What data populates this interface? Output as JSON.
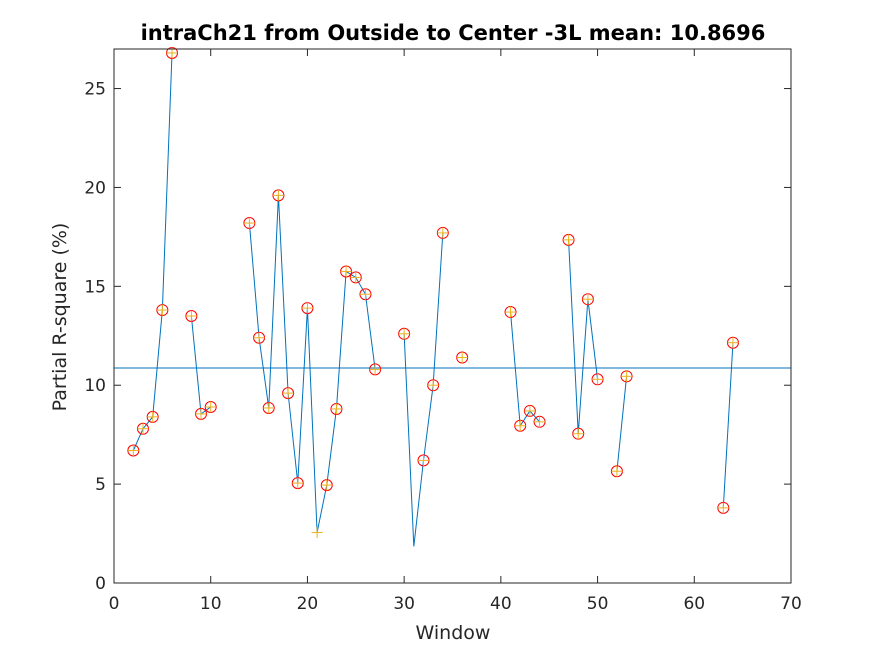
{
  "chart_data": {
    "type": "line",
    "title": "intraCh21 from Outside to Center -3L mean: 10.8696",
    "xlabel": "Window",
    "ylabel": "Partial R-square (%)",
    "xlim": [
      0,
      70
    ],
    "ylim": [
      0,
      27
    ],
    "xticks": [
      0,
      10,
      20,
      30,
      40,
      50,
      60,
      70
    ],
    "yticks": [
      0,
      5,
      10,
      15,
      20,
      25
    ],
    "xtick_labels": [
      "0",
      "10",
      "20",
      "30",
      "40",
      "50",
      "60",
      "70"
    ],
    "ytick_labels": [
      "0",
      "5",
      "10",
      "15",
      "20",
      "25"
    ],
    "grid": false,
    "mean": 10.8696,
    "line_color": "#0072BD",
    "circle_color": "#FF0000",
    "plus_color": "#EDB120",
    "series": [
      {
        "values": [
          [
            2,
            6.7
          ],
          [
            3,
            7.8
          ],
          [
            4,
            8.4
          ],
          [
            5,
            13.8
          ],
          [
            6,
            26.8
          ],
          null,
          [
            8,
            13.5
          ],
          [
            9,
            8.55
          ],
          [
            10,
            8.9
          ],
          null,
          [
            14,
            18.2
          ],
          [
            15,
            12.4
          ],
          [
            16,
            8.85
          ],
          [
            17,
            19.6
          ],
          [
            18,
            9.6
          ],
          [
            19,
            5.05
          ],
          [
            20,
            13.9
          ],
          [
            21,
            2.55
          ],
          [
            22,
            4.95
          ],
          [
            23,
            8.8
          ],
          [
            24,
            15.75
          ],
          [
            25,
            15.45
          ],
          [
            26,
            14.6
          ],
          [
            27,
            10.8
          ],
          null,
          [
            30,
            12.6
          ],
          [
            31,
            1.85
          ],
          [
            32,
            6.2
          ],
          [
            33,
            10.0
          ],
          [
            34,
            17.7
          ],
          null,
          [
            36,
            11.4
          ],
          null,
          [
            41,
            13.7
          ],
          [
            42,
            7.95
          ],
          [
            43,
            8.7
          ],
          [
            44,
            8.15
          ],
          null,
          [
            47,
            17.35
          ],
          [
            48,
            7.55
          ],
          [
            49,
            14.35
          ],
          [
            50,
            10.3
          ],
          null,
          [
            52,
            5.65
          ],
          [
            53,
            10.45
          ],
          null,
          [
            63,
            3.8
          ],
          [
            64,
            12.15
          ]
        ],
        "circle_points": [
          [
            2,
            6.7
          ],
          [
            3,
            7.8
          ],
          [
            4,
            8.4
          ],
          [
            5,
            13.8
          ],
          [
            6,
            26.8
          ],
          [
            8,
            13.5
          ],
          [
            9,
            8.55
          ],
          [
            10,
            8.9
          ],
          [
            14,
            18.2
          ],
          [
            15,
            12.4
          ],
          [
            16,
            8.85
          ],
          [
            17,
            19.6
          ],
          [
            18,
            9.6
          ],
          [
            19,
            5.05
          ],
          [
            20,
            13.9
          ],
          [
            22,
            4.95
          ],
          [
            23,
            8.8
          ],
          [
            24,
            15.75
          ],
          [
            25,
            15.45
          ],
          [
            26,
            14.6
          ],
          [
            27,
            10.8
          ],
          [
            30,
            12.6
          ],
          [
            32,
            6.2
          ],
          [
            33,
            10.0
          ],
          [
            34,
            17.7
          ],
          [
            36,
            11.4
          ],
          [
            41,
            13.7
          ],
          [
            42,
            7.95
          ],
          [
            43,
            8.7
          ],
          [
            44,
            8.15
          ],
          [
            47,
            17.35
          ],
          [
            48,
            7.55
          ],
          [
            49,
            14.35
          ],
          [
            50,
            10.3
          ],
          [
            52,
            5.65
          ],
          [
            53,
            10.45
          ],
          [
            63,
            3.8
          ],
          [
            64,
            12.15
          ]
        ],
        "plus_points": [
          [
            2,
            6.7
          ],
          [
            3,
            7.8
          ],
          [
            4,
            8.4
          ],
          [
            5,
            13.8
          ],
          [
            6,
            26.8
          ],
          [
            8,
            13.5
          ],
          [
            9,
            8.55
          ],
          [
            10,
            8.9
          ],
          [
            14,
            18.2
          ],
          [
            15,
            12.4
          ],
          [
            16,
            8.85
          ],
          [
            17,
            19.6
          ],
          [
            18,
            9.6
          ],
          [
            19,
            5.05
          ],
          [
            20,
            13.9
          ],
          [
            21,
            2.55
          ],
          [
            22,
            4.95
          ],
          [
            23,
            8.8
          ],
          [
            24,
            15.75
          ],
          [
            25,
            15.45
          ],
          [
            26,
            14.6
          ],
          [
            27,
            10.8
          ],
          [
            30,
            12.6
          ],
          [
            32,
            6.2
          ],
          [
            33,
            10.0
          ],
          [
            34,
            17.7
          ],
          [
            36,
            11.4
          ],
          [
            41,
            13.7
          ],
          [
            42,
            7.95
          ],
          [
            43,
            8.7
          ],
          [
            44,
            8.15
          ],
          [
            47,
            17.35
          ],
          [
            48,
            7.55
          ],
          [
            49,
            14.35
          ],
          [
            50,
            10.3
          ],
          [
            52,
            5.65
          ],
          [
            53,
            10.45
          ],
          [
            63,
            3.8
          ],
          [
            64,
            12.15
          ]
        ]
      }
    ]
  }
}
